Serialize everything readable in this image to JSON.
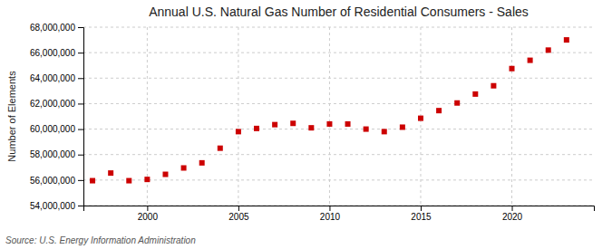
{
  "chart_data": {
    "type": "scatter",
    "title": "Annual U.S. Natural Gas Number of Residential Consumers - Sales",
    "ylabel": "Number of Elements",
    "source": "Source: U.S. Energy Information Administration",
    "color": "#cc0000",
    "marker": "square",
    "x": [
      1997,
      1998,
      1999,
      2000,
      2001,
      2002,
      2003,
      2004,
      2005,
      2006,
      2007,
      2008,
      2009,
      2010,
      2011,
      2012,
      2013,
      2014,
      2015,
      2016,
      2017,
      2018,
      2019,
      2020,
      2021,
      2022,
      2023
    ],
    "values": [
      55950000,
      56550000,
      55950000,
      56050000,
      56450000,
      56950000,
      57350000,
      58500000,
      59800000,
      60050000,
      60350000,
      60450000,
      60100000,
      60400000,
      60400000,
      60000000,
      59800000,
      60150000,
      60850000,
      61450000,
      62050000,
      62750000,
      63400000,
      64750000,
      65400000,
      66200000,
      67000000
    ],
    "xlim": [
      1996.5,
      2024.5
    ],
    "xticks": [
      2000,
      2005,
      2010,
      2015,
      2020
    ],
    "ylim": [
      54000000,
      68000000
    ],
    "yticks": [
      {
        "value": 54000000,
        "label": "54,000,000"
      },
      {
        "value": 56000000,
        "label": "56,000,000"
      },
      {
        "value": 58000000,
        "label": "58,000,000"
      },
      {
        "value": 60000000,
        "label": "60,000,000"
      },
      {
        "value": 62000000,
        "label": "62,000,000"
      },
      {
        "value": 64000000,
        "label": "64,000,000"
      },
      {
        "value": 66000000,
        "label": "66,000,000"
      },
      {
        "value": 68000000,
        "label": "68,000,000"
      }
    ],
    "grid": true
  }
}
